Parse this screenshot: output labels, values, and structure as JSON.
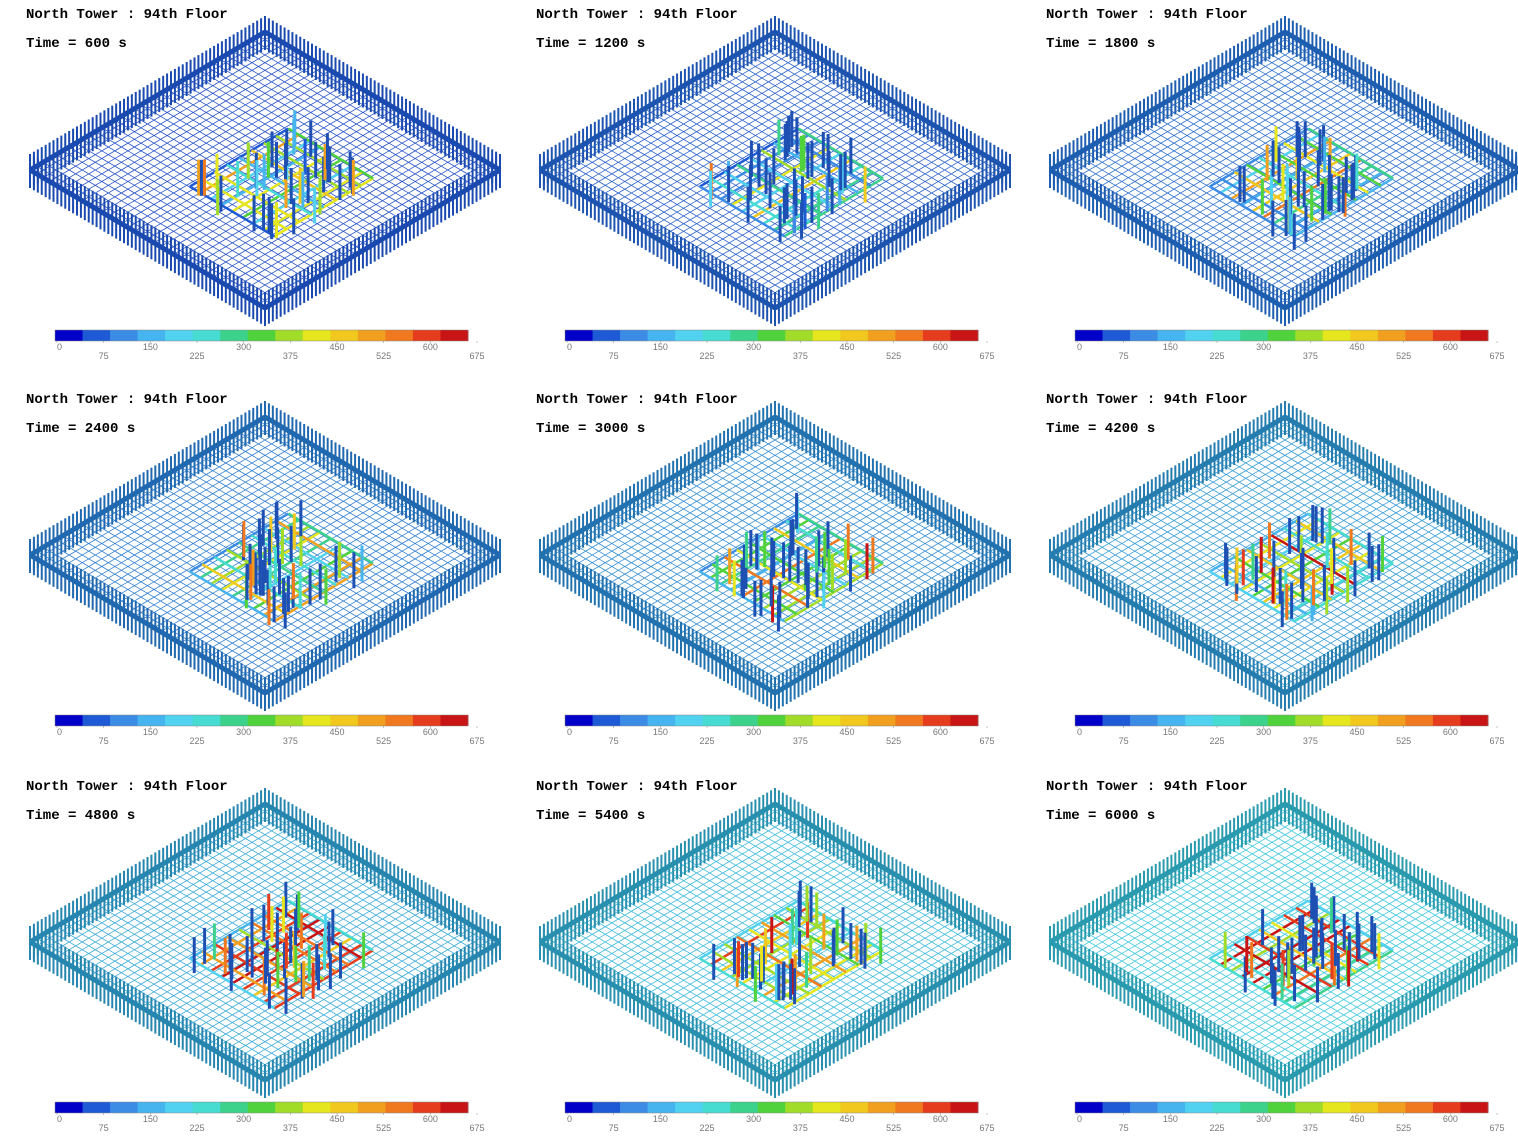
{
  "panels": [
    {
      "title": "North Tower : 94th Floor",
      "time": "Time = 600 s"
    },
    {
      "title": "North Tower : 94th Floor",
      "time": "Time = 1200 s"
    },
    {
      "title": "North Tower : 94th Floor",
      "time": "Time = 1800 s"
    },
    {
      "title": "North Tower : 94th Floor",
      "time": "Time = 2400 s"
    },
    {
      "title": "North Tower : 94th Floor",
      "time": "Time = 3000 s"
    },
    {
      "title": "North Tower : 94th Floor",
      "time": "Time = 4200 s"
    },
    {
      "title": "North Tower : 94th Floor",
      "time": "Time = 4800 s"
    },
    {
      "title": "North Tower : 94th Floor",
      "time": "Time = 5400 s"
    },
    {
      "title": "North Tower : 94th Floor",
      "time": "Time = 6000 s"
    }
  ],
  "colorbar": {
    "ticks": [
      0,
      75,
      150,
      225,
      300,
      375,
      450,
      525,
      600,
      675
    ],
    "colors": [
      "#0000c8",
      "#1e5ad6",
      "#3c8ce6",
      "#46b4ee",
      "#50d2f0",
      "#46dcd2",
      "#3cd28c",
      "#50d23c",
      "#a0dc28",
      "#e6e61e",
      "#f0c81e",
      "#f0a01e",
      "#f0781e",
      "#e63c1e",
      "#c81414"
    ]
  }
}
